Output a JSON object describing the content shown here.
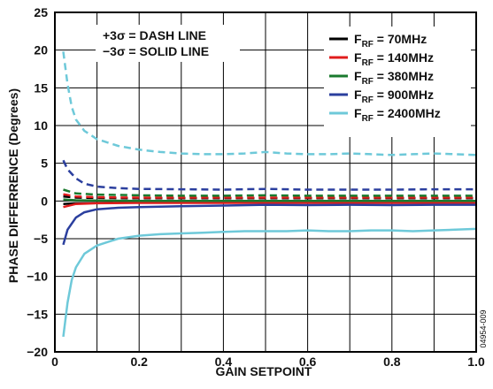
{
  "chart_data": {
    "type": "line",
    "xlabel": "GAIN SETPOINT",
    "ylabel": "PHASE DIFFERRENCE (Degrees)",
    "xlim": [
      0,
      1.0
    ],
    "ylim": [
      -20,
      25
    ],
    "x_ticks": [
      "0",
      "0.2",
      "0.4",
      "0.6",
      "0.8",
      "1.0"
    ],
    "y_ticks": [
      "25",
      "20",
      "15",
      "10",
      "5",
      "0",
      "−5",
      "−10",
      "−15",
      "−20"
    ],
    "grid": true,
    "annotations": [
      "+3σ = DASH LINE",
      "−3σ = SOLID LINE"
    ],
    "figure_id": "04954-009",
    "legend_position": "top-right",
    "series": [
      {
        "name": "F_RF = 70MHz",
        "label_main": "F",
        "label_sub": "RF",
        "label_rest": " = 70MHz",
        "color": "#000000",
        "plus3": [
          [
            0.02,
            0.6
          ],
          [
            0.05,
            0.45
          ],
          [
            0.1,
            0.4
          ],
          [
            0.2,
            0.35
          ],
          [
            0.3,
            0.35
          ],
          [
            0.4,
            0.35
          ],
          [
            0.5,
            0.35
          ],
          [
            0.6,
            0.35
          ],
          [
            0.7,
            0.35
          ],
          [
            0.8,
            0.35
          ],
          [
            0.9,
            0.35
          ],
          [
            1.0,
            0.35
          ]
        ],
        "minus3": [
          [
            0.02,
            -0.4
          ],
          [
            0.05,
            -0.3
          ],
          [
            0.1,
            -0.25
          ],
          [
            0.2,
            -0.2
          ],
          [
            0.3,
            -0.2
          ],
          [
            0.4,
            -0.2
          ],
          [
            0.5,
            -0.2
          ],
          [
            0.6,
            -0.2
          ],
          [
            0.7,
            -0.2
          ],
          [
            0.8,
            -0.2
          ],
          [
            0.9,
            -0.2
          ],
          [
            1.0,
            -0.2
          ]
        ]
      },
      {
        "name": "F_RF = 140MHz",
        "label_main": "F",
        "label_sub": "RF",
        "label_rest": " = 140MHz",
        "color": "#e01c1c",
        "plus3": [
          [
            0.02,
            0.9
          ],
          [
            0.05,
            0.6
          ],
          [
            0.1,
            0.5
          ],
          [
            0.2,
            0.45
          ],
          [
            0.3,
            0.45
          ],
          [
            0.4,
            0.45
          ],
          [
            0.5,
            0.45
          ],
          [
            0.6,
            0.45
          ],
          [
            0.7,
            0.45
          ],
          [
            0.8,
            0.45
          ],
          [
            0.9,
            0.45
          ],
          [
            1.0,
            0.45
          ]
        ],
        "minus3": [
          [
            0.02,
            -0.8
          ],
          [
            0.05,
            -0.4
          ],
          [
            0.1,
            -0.3
          ],
          [
            0.2,
            -0.25
          ],
          [
            0.3,
            -0.25
          ],
          [
            0.4,
            -0.25
          ],
          [
            0.5,
            -0.25
          ],
          [
            0.6,
            -0.25
          ],
          [
            0.7,
            -0.25
          ],
          [
            0.8,
            -0.25
          ],
          [
            0.9,
            -0.25
          ],
          [
            1.0,
            -0.25
          ]
        ]
      },
      {
        "name": "F_RF = 380MHz",
        "label_main": "F",
        "label_sub": "RF",
        "label_rest": " = 380MHz",
        "color": "#1a7a2e",
        "plus3": [
          [
            0.02,
            1.5
          ],
          [
            0.05,
            1.0
          ],
          [
            0.1,
            0.85
          ],
          [
            0.2,
            0.75
          ],
          [
            0.3,
            0.7
          ],
          [
            0.4,
            0.7
          ],
          [
            0.5,
            0.75
          ],
          [
            0.6,
            0.7
          ],
          [
            0.7,
            0.7
          ],
          [
            0.8,
            0.7
          ],
          [
            0.9,
            0.7
          ],
          [
            1.0,
            0.7
          ]
        ],
        "minus3": [
          [
            0.02,
            0.2
          ],
          [
            0.05,
            0.1
          ],
          [
            0.1,
            0.05
          ],
          [
            0.2,
            0.0
          ],
          [
            0.3,
            0.0
          ],
          [
            0.4,
            0.0
          ],
          [
            0.5,
            0.0
          ],
          [
            0.6,
            0.0
          ],
          [
            0.7,
            0.0
          ],
          [
            0.8,
            0.0
          ],
          [
            0.9,
            0.0
          ],
          [
            1.0,
            0.0
          ]
        ]
      },
      {
        "name": "F_RF = 900MHz",
        "label_main": "F",
        "label_sub": "RF",
        "label_rest": " = 900MHz",
        "color": "#2b3f9e",
        "plus3": [
          [
            0.02,
            5.4
          ],
          [
            0.03,
            4.2
          ],
          [
            0.05,
            3.0
          ],
          [
            0.07,
            2.3
          ],
          [
            0.1,
            1.9
          ],
          [
            0.15,
            1.7
          ],
          [
            0.2,
            1.6
          ],
          [
            0.3,
            1.55
          ],
          [
            0.4,
            1.5
          ],
          [
            0.5,
            1.6
          ],
          [
            0.6,
            1.5
          ],
          [
            0.7,
            1.5
          ],
          [
            0.8,
            1.5
          ],
          [
            0.9,
            1.55
          ],
          [
            1.0,
            1.55
          ]
        ],
        "minus3": [
          [
            0.02,
            -5.8
          ],
          [
            0.03,
            -3.8
          ],
          [
            0.05,
            -2.2
          ],
          [
            0.07,
            -1.5
          ],
          [
            0.1,
            -1.1
          ],
          [
            0.15,
            -0.9
          ],
          [
            0.2,
            -0.8
          ],
          [
            0.3,
            -0.7
          ],
          [
            0.4,
            -0.6
          ],
          [
            0.5,
            -0.5
          ],
          [
            0.6,
            -0.55
          ],
          [
            0.7,
            -0.5
          ],
          [
            0.8,
            -0.55
          ],
          [
            0.9,
            -0.5
          ],
          [
            1.0,
            -0.5
          ]
        ]
      },
      {
        "name": "F_RF = 2400MHz",
        "label_main": "F",
        "label_sub": "RF",
        "label_rest": " = 2400MHz",
        "color": "#6ec9d9",
        "plus3": [
          [
            0.02,
            19.8
          ],
          [
            0.03,
            15.5
          ],
          [
            0.04,
            12.5
          ],
          [
            0.05,
            10.8
          ],
          [
            0.07,
            9.3
          ],
          [
            0.1,
            8.2
          ],
          [
            0.15,
            7.3
          ],
          [
            0.2,
            6.8
          ],
          [
            0.25,
            6.5
          ],
          [
            0.3,
            6.3
          ],
          [
            0.35,
            6.2
          ],
          [
            0.4,
            6.2
          ],
          [
            0.45,
            6.3
          ],
          [
            0.5,
            6.5
          ],
          [
            0.55,
            6.3
          ],
          [
            0.6,
            6.2
          ],
          [
            0.65,
            6.2
          ],
          [
            0.7,
            6.3
          ],
          [
            0.75,
            6.2
          ],
          [
            0.8,
            6.1
          ],
          [
            0.85,
            6.2
          ],
          [
            0.9,
            6.3
          ],
          [
            0.95,
            6.2
          ],
          [
            1.0,
            6.1
          ]
        ],
        "minus3": [
          [
            0.02,
            -18.0
          ],
          [
            0.03,
            -13.5
          ],
          [
            0.04,
            -10.5
          ],
          [
            0.05,
            -8.8
          ],
          [
            0.07,
            -7.0
          ],
          [
            0.1,
            -5.9
          ],
          [
            0.15,
            -5.0
          ],
          [
            0.2,
            -4.6
          ],
          [
            0.25,
            -4.4
          ],
          [
            0.3,
            -4.3
          ],
          [
            0.35,
            -4.2
          ],
          [
            0.4,
            -4.1
          ],
          [
            0.45,
            -4.0
          ],
          [
            0.5,
            -4.0
          ],
          [
            0.55,
            -4.0
          ],
          [
            0.6,
            -3.9
          ],
          [
            0.65,
            -4.0
          ],
          [
            0.7,
            -4.0
          ],
          [
            0.75,
            -3.9
          ],
          [
            0.8,
            -3.9
          ],
          [
            0.85,
            -4.0
          ],
          [
            0.9,
            -3.9
          ],
          [
            0.95,
            -3.8
          ],
          [
            1.0,
            -3.7
          ]
        ]
      }
    ]
  }
}
